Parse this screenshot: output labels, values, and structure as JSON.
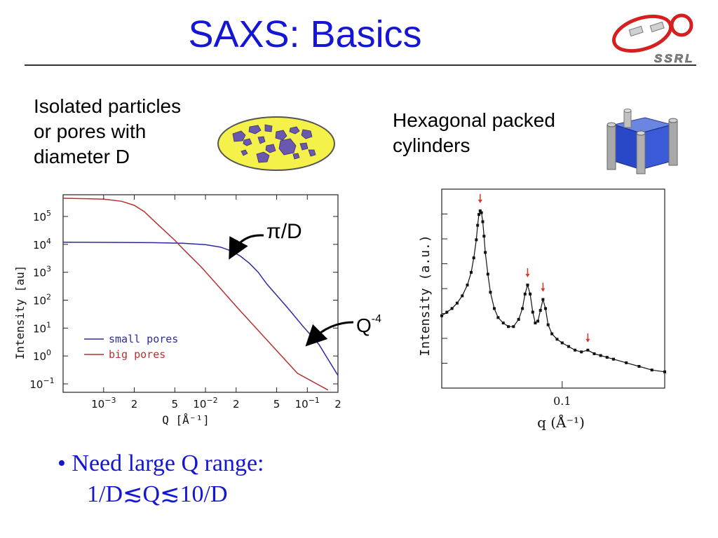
{
  "title": "SAXS: Basics",
  "logo_text": "SSRL",
  "isolated_lines": [
    "Isolated particles",
    "or pores with",
    "diameter D"
  ],
  "hexagonal_lines": [
    "Hexagonal packed",
    "cylinders"
  ],
  "pi_label": "π/D",
  "q4_base": "Q",
  "q4_exp": "-4",
  "bullet_line1": "• Need large Q range:",
  "bullet_line2": "1/D≲Q≲10/D",
  "chart_data": [
    {
      "type": "line",
      "xscale": "log",
      "yscale": "log",
      "xlabel": "Q [Å⁻¹]",
      "ylabel": "Intensity [au]",
      "xlim": [
        0.0004,
        0.2
      ],
      "ylim": [
        0.05,
        600000
      ],
      "x_ticks": [
        {
          "v": 0.001,
          "label": "10",
          "exp": "−3"
        },
        {
          "v": 0.002,
          "label": "2"
        },
        {
          "v": 0.005,
          "label": "5"
        },
        {
          "v": 0.01,
          "label": "10",
          "exp": "−2"
        },
        {
          "v": 0.02,
          "label": "2"
        },
        {
          "v": 0.05,
          "label": "5"
        },
        {
          "v": 0.1,
          "label": "10",
          "exp": "−1"
        },
        {
          "v": 0.2,
          "label": "2"
        }
      ],
      "y_ticks": [
        {
          "v": 0.1,
          "label": "10",
          "exp": "−1"
        },
        {
          "v": 1,
          "label": "10",
          "exp": "0"
        },
        {
          "v": 10,
          "label": "10",
          "exp": "1"
        },
        {
          "v": 100,
          "label": "10",
          "exp": "2"
        },
        {
          "v": 1000,
          "label": "10",
          "exp": "3"
        },
        {
          "v": 10000,
          "label": "10",
          "exp": "4"
        },
        {
          "v": 100000,
          "label": "10",
          "exp": "5"
        }
      ],
      "legend": "lower-left",
      "series": [
        {
          "name": "small pores",
          "color": "#2b2ba0",
          "x": [
            0.0004,
            0.001,
            0.003,
            0.006,
            0.01,
            0.014,
            0.018,
            0.022,
            0.027,
            0.033,
            0.04,
            0.05,
            0.065,
            0.09,
            0.13,
            0.2
          ],
          "y": [
            12000,
            11800,
            11500,
            11000,
            9800,
            8000,
            5800,
            3800,
            2100,
            1000,
            380,
            150,
            50,
            12,
            2.6,
            0.2
          ]
        },
        {
          "name": "big pores",
          "color": "#b83030",
          "x": [
            0.0004,
            0.001,
            0.0015,
            0.002,
            0.0025,
            0.003,
            0.004,
            0.005,
            0.006,
            0.007,
            0.009,
            0.012,
            0.02,
            0.04,
            0.08,
            0.16
          ],
          "y": [
            450000,
            420000,
            350000,
            250000,
            150000,
            80000,
            30000,
            14000,
            7000,
            4000,
            1600,
            500,
            60,
            3.8,
            0.24,
            0.06
          ]
        }
      ]
    },
    {
      "type": "scatter",
      "xlabel": "q (Å⁻¹)",
      "ylabel": "Intensity (a.u.)",
      "xlim": [
        0.006,
        0.18
      ],
      "ylim": [
        0,
        110
      ],
      "x_ticks": [
        {
          "v": 0.1,
          "label": "0.1"
        }
      ],
      "peaks": [
        0.036,
        0.073,
        0.085,
        0.12
      ],
      "series": [
        {
          "name": "",
          "color": "#111111",
          "x": [
            0.006,
            0.01,
            0.014,
            0.018,
            0.022,
            0.026,
            0.029,
            0.031,
            0.033,
            0.034,
            0.035,
            0.036,
            0.037,
            0.038,
            0.039,
            0.04,
            0.042,
            0.044,
            0.047,
            0.05,
            0.054,
            0.058,
            0.062,
            0.066,
            0.069,
            0.071,
            0.073,
            0.075,
            0.077,
            0.079,
            0.081,
            0.083,
            0.085,
            0.087,
            0.089,
            0.092,
            0.096,
            0.1,
            0.105,
            0.11,
            0.115,
            0.12,
            0.125,
            0.13,
            0.135,
            0.14,
            0.15,
            0.16,
            0.17,
            0.18
          ],
          "y": [
            40,
            42,
            44,
            47,
            51,
            57,
            64,
            72,
            82,
            90,
            96,
            98,
            97,
            92,
            84,
            75,
            63,
            53,
            44,
            39,
            36,
            34,
            34,
            38,
            44,
            52,
            57,
            52,
            42,
            36,
            37,
            43,
            49,
            44,
            35,
            30,
            27,
            25,
            23,
            21,
            20,
            21,
            19,
            18,
            17,
            16,
            14,
            12,
            10,
            9
          ]
        }
      ]
    }
  ]
}
